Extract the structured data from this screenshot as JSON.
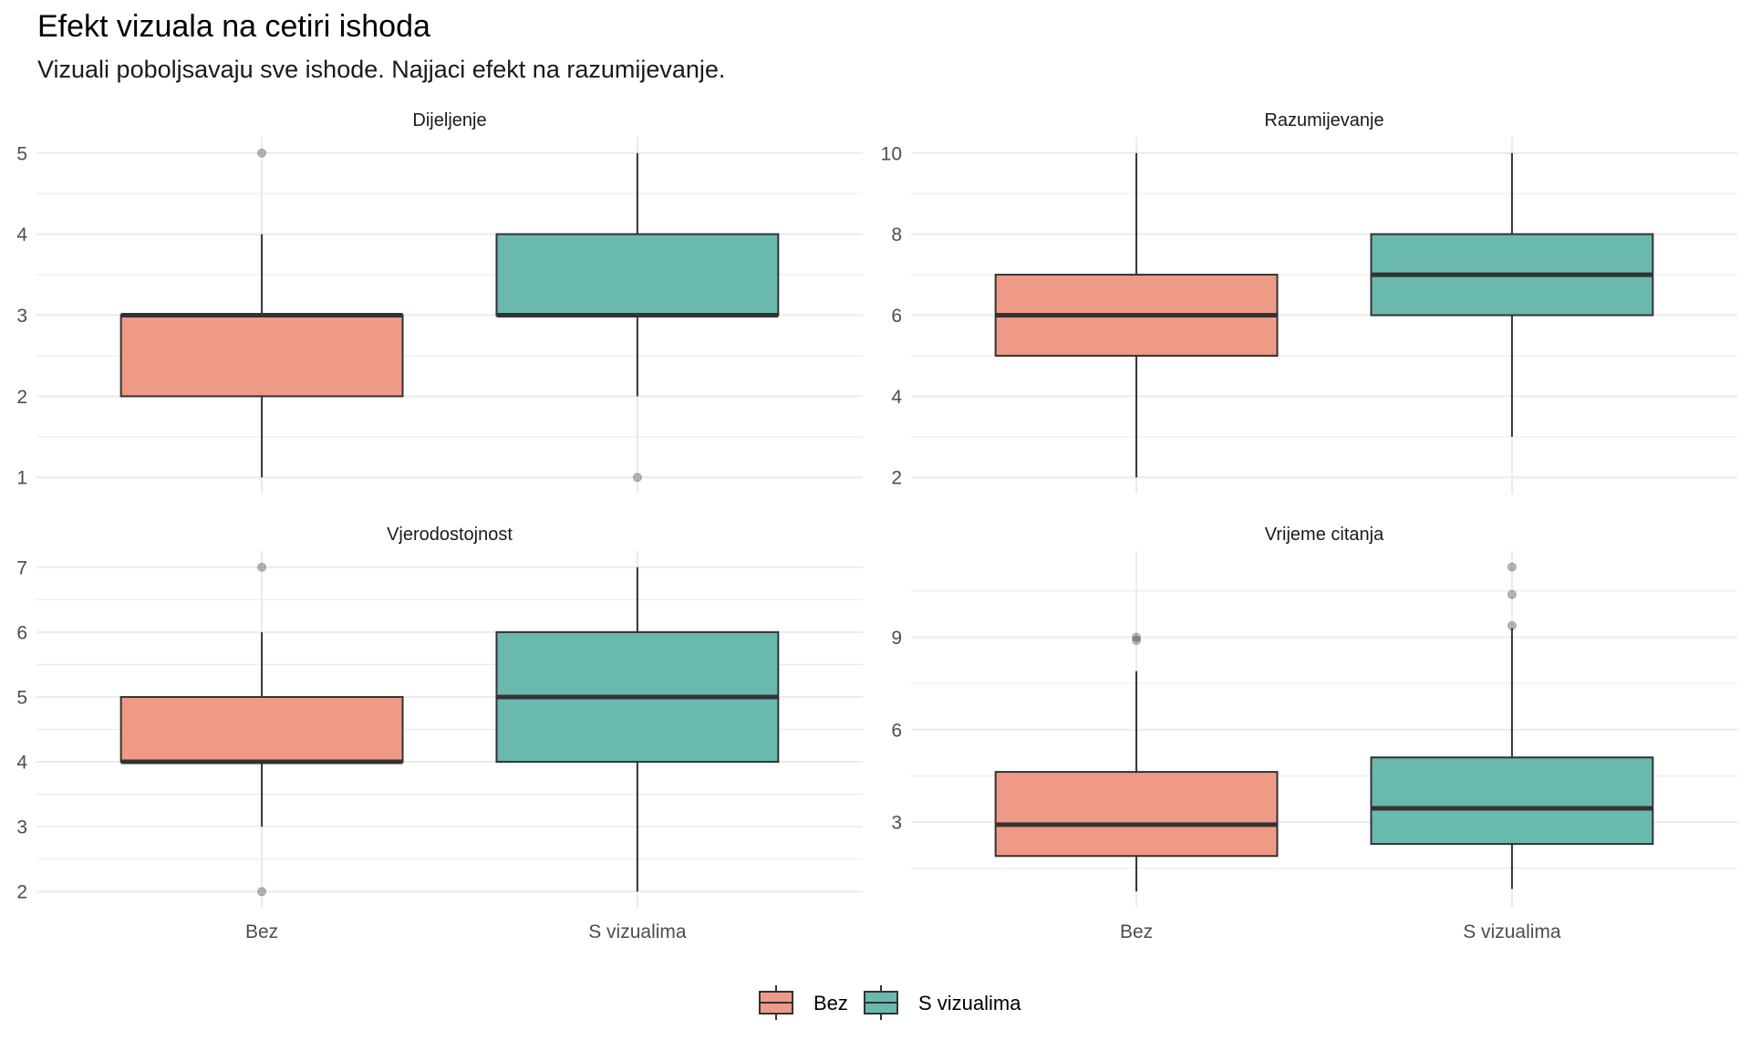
{
  "chart_data": {
    "type": "boxplot",
    "title": "Efekt vizuala na cetiri ishoda",
    "subtitle": "Vizuali poboljsavaju sve ishode. Najjaci efekt na razumijevanje.",
    "categories": [
      "Bez",
      "S vizualima"
    ],
    "legend": {
      "position": "bottom",
      "entries": [
        {
          "label": "Bez",
          "color": "#EE9A86"
        },
        {
          "label": "S vizualima",
          "color": "#69B9AF"
        }
      ]
    },
    "grid": true,
    "facets": [
      {
        "name": "Dijeljenje",
        "ylim": [
          0.8,
          5.2
        ],
        "yticks": [
          1,
          2,
          3,
          4,
          5
        ],
        "tick_labels": [
          "1",
          "2",
          "3",
          "4",
          "5"
        ],
        "boxes": [
          {
            "category": "Bez",
            "min": 1,
            "q1": 2,
            "median": 3,
            "q3": 3,
            "max": 4,
            "outliers": [
              5
            ]
          },
          {
            "category": "S vizualima",
            "min": 2,
            "q1": 3,
            "median": 3,
            "q3": 4,
            "max": 5,
            "outliers": [
              1
            ]
          }
        ]
      },
      {
        "name": "Razumijevanje",
        "ylim": [
          1.6,
          10.4
        ],
        "yticks": [
          2,
          4,
          6,
          8,
          10
        ],
        "tick_labels": [
          "2",
          "4",
          "6",
          "8",
          "10"
        ],
        "boxes": [
          {
            "category": "Bez",
            "min": 2,
            "q1": 5,
            "median": 6,
            "q3": 7,
            "max": 10,
            "outliers": []
          },
          {
            "category": "S vizualima",
            "min": 3,
            "q1": 6,
            "median": 7,
            "q3": 8,
            "max": 10,
            "outliers": []
          }
        ]
      },
      {
        "name": "Vjerodostojnost",
        "ylim": [
          1.75,
          7.25
        ],
        "yticks": [
          2,
          3,
          4,
          5,
          6,
          7
        ],
        "tick_labels": [
          "2",
          "3",
          "4",
          "5",
          "6",
          "7"
        ],
        "boxes": [
          {
            "category": "Bez",
            "min": 3,
            "q1": 4,
            "median": 4,
            "q3": 5,
            "max": 6,
            "outliers": [
              7,
              2
            ]
          },
          {
            "category": "S vizualima",
            "min": 2,
            "q1": 4,
            "median": 5,
            "q3": 6,
            "max": 7,
            "outliers": []
          }
        ]
      },
      {
        "name": "Vrijeme citanja",
        "ylim": [
          0.22,
          11.8
        ],
        "yticks": [
          3,
          6,
          9
        ],
        "tick_labels": [
          "3",
          "6",
          "9"
        ],
        "boxes": [
          {
            "category": "Bez",
            "min": 0.75,
            "q1": 1.9,
            "median": 2.92,
            "q3": 4.63,
            "max": 7.9,
            "outliers": [
              9.0,
              8.9
            ]
          },
          {
            "category": "S vizualima",
            "min": 0.83,
            "q1": 2.29,
            "median": 3.45,
            "q3": 5.1,
            "max": 9.3,
            "outliers": [
              9.38,
              10.39,
              11.28
            ]
          }
        ]
      }
    ]
  }
}
